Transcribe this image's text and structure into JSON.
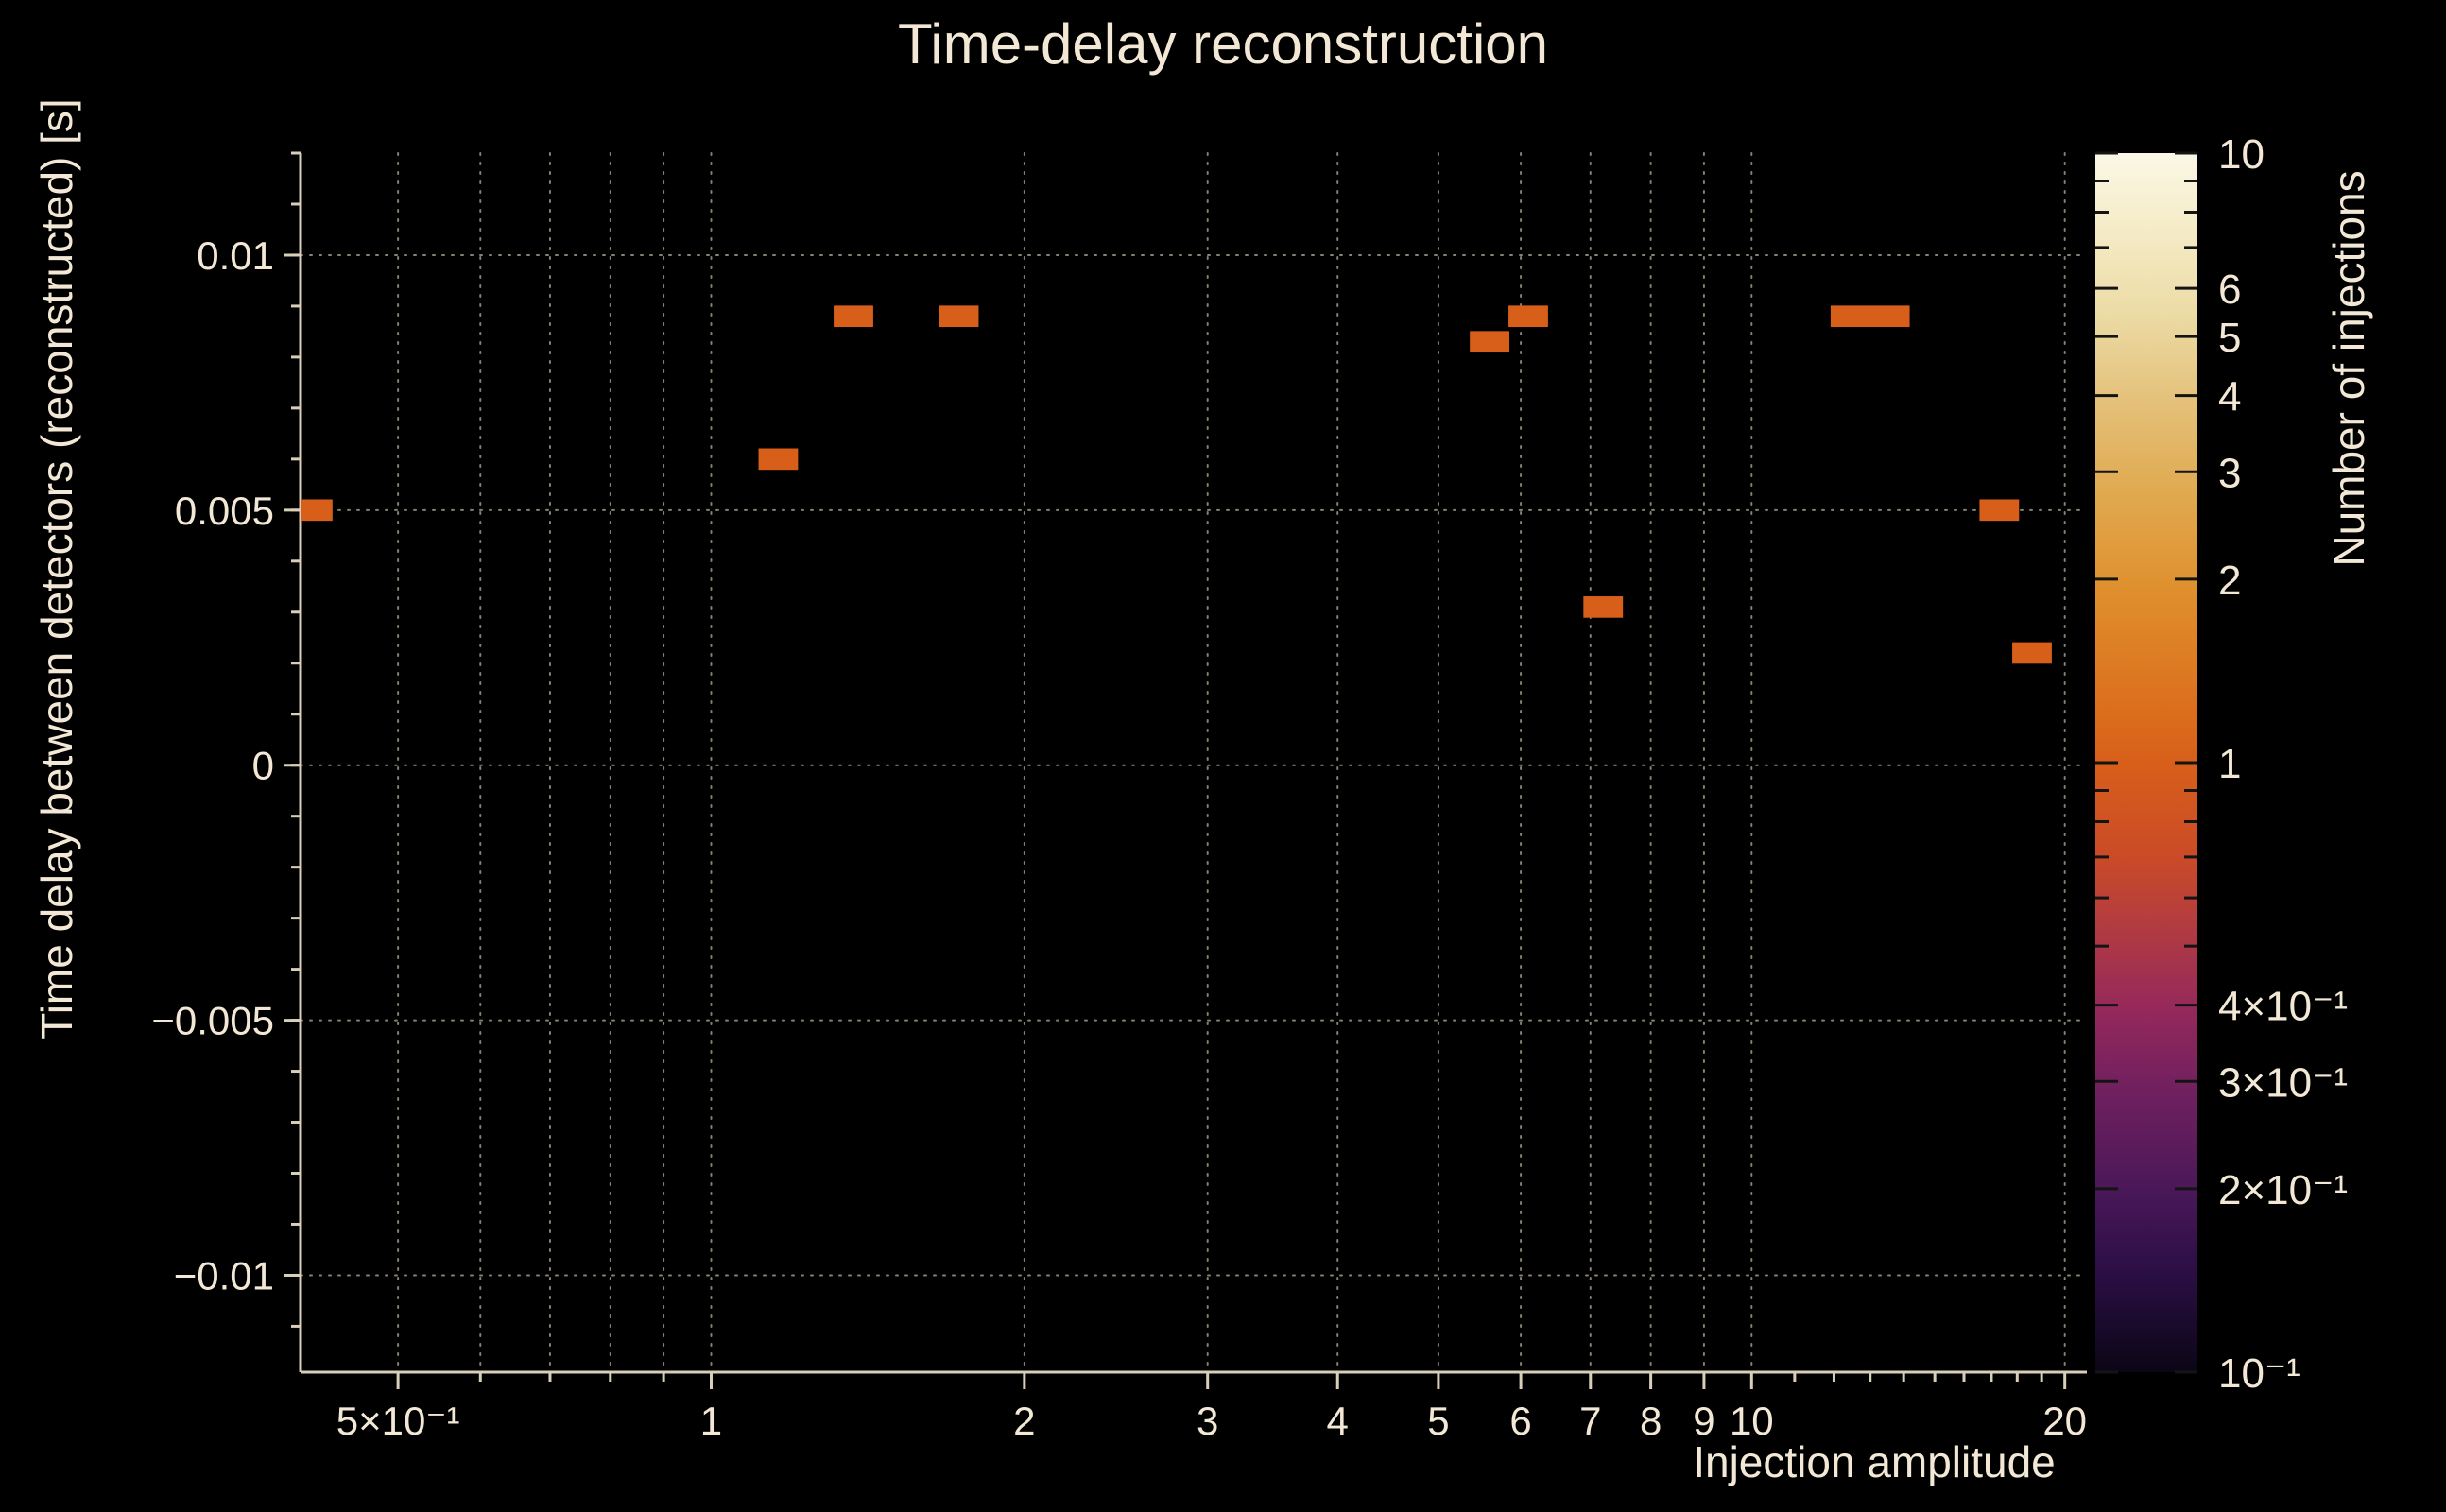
{
  "chart_data": {
    "type": "heatmap",
    "title": "Time-delay reconstruction",
    "xlabel": "Injection amplitude",
    "ylabel": "Time delay between detectors (reconstructed) [s]",
    "x_scale": "log",
    "xlim": [
      0.403,
      21
    ],
    "y_scale": "linear",
    "ylim": [
      -0.0119,
      0.012
    ],
    "grid": "dotted",
    "x_major_ticks": [
      {
        "value": 0.5,
        "label": "5×10⁻¹"
      },
      {
        "value": 1,
        "label": "1"
      },
      {
        "value": 2,
        "label": "2"
      },
      {
        "value": 3,
        "label": "3"
      },
      {
        "value": 4,
        "label": "4"
      },
      {
        "value": 5,
        "label": "5"
      },
      {
        "value": 6,
        "label": "6"
      },
      {
        "value": 7,
        "label": "7"
      },
      {
        "value": 8,
        "label": "8"
      },
      {
        "value": 9,
        "label": "9"
      },
      {
        "value": 10,
        "label": "10"
      },
      {
        "value": 20,
        "label": "20"
      }
    ],
    "x_minor_ticks": [
      0.6,
      0.7,
      0.8,
      0.9,
      11,
      12,
      13,
      14,
      15,
      16,
      17,
      18,
      19
    ],
    "x_grid_values": [
      0.5,
      0.6,
      0.7,
      0.8,
      0.9,
      1,
      2,
      3,
      4,
      5,
      6,
      7,
      8,
      9,
      10,
      20
    ],
    "y_major_ticks": [
      {
        "value": 0.01,
        "label": "0.01"
      },
      {
        "value": 0.005,
        "label": "0.005"
      },
      {
        "value": 0,
        "label": "0"
      },
      {
        "value": -0.005,
        "label": "−0.005"
      },
      {
        "value": -0.01,
        "label": "−0.01"
      }
    ],
    "y_minor_step": 0.001,
    "bin_width_decades": 0.038,
    "bin_height": 0.00042,
    "points": [
      {
        "x": 0.414,
        "y": 0.005,
        "count": 1
      },
      {
        "x": 1.16,
        "y": 0.006,
        "count": 1
      },
      {
        "x": 1.37,
        "y": 0.0088,
        "count": 1
      },
      {
        "x": 1.73,
        "y": 0.0088,
        "count": 1
      },
      {
        "x": 5.6,
        "y": 0.0083,
        "count": 1
      },
      {
        "x": 6.1,
        "y": 0.0088,
        "count": 1
      },
      {
        "x": 7.2,
        "y": 0.0031,
        "count": 1
      },
      {
        "x": 13.0,
        "y": 0.0088,
        "count": 1,
        "w": 2
      },
      {
        "x": 17.3,
        "y": 0.005,
        "count": 1
      },
      {
        "x": 18.6,
        "y": 0.0022,
        "count": 1
      }
    ],
    "colorbar": {
      "label": "Number of injections",
      "scale": "log",
      "range": [
        0.1,
        10
      ],
      "ticks": [
        {
          "value": 10,
          "label": "10"
        },
        {
          "value": 6,
          "label": "6"
        },
        {
          "value": 5,
          "label": "5"
        },
        {
          "value": 4,
          "label": "4"
        },
        {
          "value": 3,
          "label": "3"
        },
        {
          "value": 2,
          "label": "2"
        },
        {
          "value": 1,
          "label": "1"
        },
        {
          "value": 0.4,
          "label": "4×10⁻¹"
        },
        {
          "value": 0.3,
          "label": "3×10⁻¹"
        },
        {
          "value": 0.2,
          "label": "2×10⁻¹"
        },
        {
          "value": 0.1,
          "label": "10⁻¹"
        }
      ],
      "minor_ticks": [
        9,
        8,
        7,
        0.9,
        0.8,
        0.7,
        0.6,
        0.5
      ],
      "gradient_stops": [
        {
          "at": 0.0,
          "color": "#fbf7e6"
        },
        {
          "at": 0.06,
          "color": "#f5ecc8"
        },
        {
          "at": 0.13,
          "color": "#ecdca6"
        },
        {
          "at": 0.2,
          "color": "#e4c27c"
        },
        {
          "at": 0.28,
          "color": "#e0a94f"
        },
        {
          "at": 0.36,
          "color": "#df8f2d"
        },
        {
          "at": 0.44,
          "color": "#dc741f"
        },
        {
          "at": 0.5,
          "color": "#d85f1a"
        },
        {
          "at": 0.58,
          "color": "#c94a28"
        },
        {
          "at": 0.64,
          "color": "#b03a43"
        },
        {
          "at": 0.7,
          "color": "#96295a"
        },
        {
          "at": 0.76,
          "color": "#75215f"
        },
        {
          "at": 0.85,
          "color": "#4a1858"
        },
        {
          "at": 0.92,
          "color": "#2a0e44"
        },
        {
          "at": 1.0,
          "color": "#0b0616"
        }
      ]
    },
    "colors": {
      "background": "#000000",
      "text": "#f2e8d5",
      "grid": "#cfc6ae",
      "axis": "#d9cfb8",
      "marker": "#d85f1a"
    }
  }
}
